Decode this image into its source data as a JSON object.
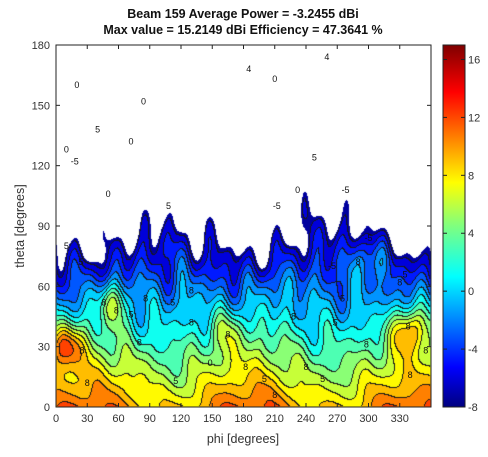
{
  "chart_data": {
    "type": "heatmap",
    "title": "Beam 159 Average Power = -3.2455 dBi",
    "subtitle": "Max value = 15.2149 dBi Efficiency = 47.3641 %",
    "xlabel": "phi [degrees]",
    "ylabel": "theta [degrees]",
    "x_ticks": [
      0,
      30,
      60,
      90,
      120,
      150,
      180,
      210,
      240,
      270,
      300,
      330
    ],
    "y_ticks": [
      0,
      30,
      60,
      90,
      120,
      150,
      180
    ],
    "xlim": [
      0,
      360
    ],
    "ylim": [
      0,
      180
    ],
    "colorbar": {
      "ticks": [
        -8,
        -4,
        0,
        4,
        8,
        12,
        16
      ],
      "range": [
        -8,
        17
      ],
      "colormap": "jet"
    },
    "z_units": "dBi",
    "peaks": [
      {
        "phi": 10,
        "theta": 30,
        "value": 15
      },
      {
        "phi": 55,
        "theta": 52,
        "value": 13
      },
      {
        "phi": 340,
        "theta": 38,
        "value": 15
      },
      {
        "phi": 302,
        "theta": 73,
        "value": 12
      },
      {
        "phi": 165,
        "theta": 38,
        "value": 10
      },
      {
        "phi": 215,
        "theta": 60,
        "value": 9
      },
      {
        "phi": 75,
        "theta": 18,
        "value": 8
      },
      {
        "phi": 130,
        "theta": 55,
        "value": 8
      }
    ],
    "contour_labels": [
      {
        "text": "0",
        "phi": 20,
        "theta": 160
      },
      {
        "text": "4",
        "phi": 185,
        "theta": 168
      },
      {
        "text": "4",
        "phi": 260,
        "theta": 174
      },
      {
        "text": "0",
        "phi": 10,
        "theta": 128
      },
      {
        "text": "-5",
        "phi": 18,
        "theta": 122
      },
      {
        "text": "5",
        "phi": 40,
        "theta": 138
      },
      {
        "text": "0",
        "phi": 72,
        "theta": 132
      },
      {
        "text": "0",
        "phi": 84,
        "theta": 152
      },
      {
        "text": "0",
        "phi": 210,
        "theta": 163
      },
      {
        "text": "5",
        "phi": 248,
        "theta": 124
      },
      {
        "text": "0",
        "phi": 232,
        "theta": 108
      },
      {
        "text": "-5",
        "phi": 278,
        "theta": 108
      },
      {
        "text": "-5",
        "phi": 212,
        "theta": 100
      },
      {
        "text": "-5",
        "phi": 300,
        "theta": 84
      },
      {
        "text": "0",
        "phi": 50,
        "theta": 106
      },
      {
        "text": "-5",
        "phi": 265,
        "theta": 70
      },
      {
        "text": "5",
        "phi": 108,
        "theta": 100
      },
      {
        "text": "5",
        "phi": 24,
        "theta": 72
      },
      {
        "text": "5",
        "phi": 10,
        "theta": 80
      },
      {
        "text": "8",
        "phi": 46,
        "theta": 52
      },
      {
        "text": "8",
        "phi": 58,
        "theta": 48
      },
      {
        "text": "8",
        "phi": 86,
        "theta": 54
      },
      {
        "text": "5",
        "phi": 112,
        "theta": 52
      },
      {
        "text": "5",
        "phi": 72,
        "theta": 46
      },
      {
        "text": "8",
        "phi": 130,
        "theta": 58
      },
      {
        "text": "8",
        "phi": 130,
        "theta": 42
      },
      {
        "text": "8",
        "phi": 165,
        "theta": 36
      },
      {
        "text": "0",
        "phi": 148,
        "theta": 22
      },
      {
        "text": "8",
        "phi": 182,
        "theta": 20
      },
      {
        "text": "5",
        "phi": 200,
        "theta": 14
      },
      {
        "text": "8",
        "phi": 240,
        "theta": 20
      },
      {
        "text": "5",
        "phi": 256,
        "theta": 14
      },
      {
        "text": "8",
        "phi": 290,
        "theta": 72
      },
      {
        "text": "8",
        "phi": 330,
        "theta": 62
      },
      {
        "text": "5",
        "phi": 335,
        "theta": 66
      },
      {
        "text": "8",
        "phi": 338,
        "theta": 40
      },
      {
        "text": "8",
        "phi": 228,
        "theta": 45
      },
      {
        "text": "5",
        "phi": 268,
        "theta": 42
      },
      {
        "text": "5",
        "phi": 275,
        "theta": 54
      },
      {
        "text": "8",
        "phi": 25,
        "theta": 28
      },
      {
        "text": "8",
        "phi": 298,
        "theta": 31
      },
      {
        "text": "8",
        "phi": 80,
        "theta": 32
      },
      {
        "text": "8",
        "phi": 30,
        "theta": 12
      },
      {
        "text": "8",
        "phi": 355,
        "theta": 28
      },
      {
        "text": "8",
        "phi": 210,
        "theta": 6
      },
      {
        "text": "5",
        "phi": 115,
        "theta": 13
      },
      {
        "text": "8",
        "phi": 340,
        "theta": 16
      }
    ]
  }
}
